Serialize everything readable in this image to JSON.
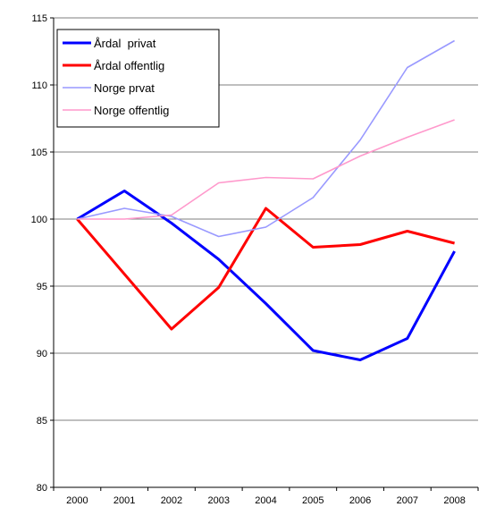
{
  "chart_data": {
    "type": "line",
    "title": "",
    "xlabel": "",
    "ylabel": "",
    "categories": [
      "2000",
      "2001",
      "2002",
      "2003",
      "2004",
      "2005",
      "2006",
      "2007",
      "2008"
    ],
    "ylim": [
      80,
      115
    ],
    "yticks": [
      80,
      85,
      90,
      95,
      100,
      105,
      110,
      115
    ],
    "grid": "horizontal",
    "legend_position": "top-left",
    "series": [
      {
        "name": "Årdal  privat",
        "color": "#0000ff",
        "values": [
          100,
          102.1,
          99.7,
          97.0,
          93.7,
          90.2,
          89.5,
          91.1,
          97.6
        ]
      },
      {
        "name": "Årdal offentlig",
        "color": "#ff0000",
        "values": [
          100,
          95.9,
          91.8,
          94.9,
          100.8,
          97.9,
          98.1,
          99.1,
          98.2
        ]
      },
      {
        "name": "Norge prvat",
        "color": "#9999ff",
        "values": [
          100,
          100.8,
          100.2,
          98.7,
          99.4,
          101.6,
          105.9,
          111.3,
          113.3
        ]
      },
      {
        "name": "Norge offentlig",
        "color": "#ff99cc",
        "values": [
          100,
          100.0,
          100.3,
          102.7,
          103.1,
          103.0,
          104.7,
          106.1,
          107.4
        ]
      }
    ]
  }
}
